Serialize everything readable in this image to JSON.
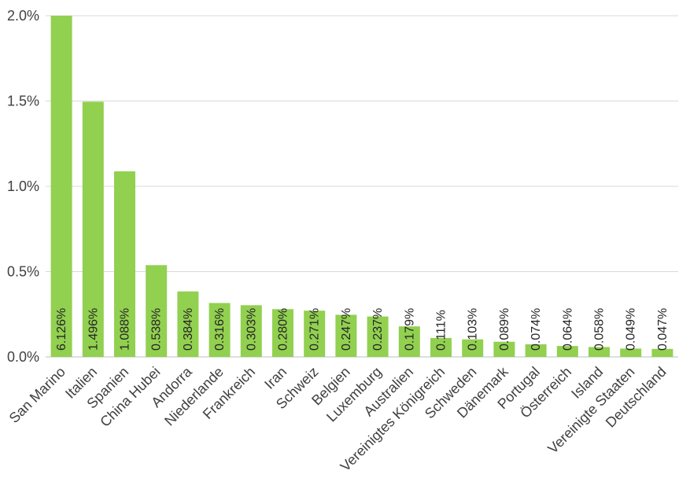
{
  "chart_data": {
    "type": "bar",
    "title": "",
    "xlabel": "",
    "ylabel": "",
    "categories": [
      "San Marino",
      "Italien",
      "Spanien",
      "China Hubei",
      "Andorra",
      "Niederlande",
      "Frankreich",
      "Iran",
      "Schweiz",
      "Belgien",
      "Luxemburg",
      "Australien",
      "Vereinigtes Königreich",
      "Schweden",
      "Dänemark",
      "Portugal",
      "Österreich",
      "Island",
      "Vereinigte Staaten",
      "Deutschland"
    ],
    "values": [
      6.126,
      1.496,
      1.088,
      0.538,
      0.384,
      0.316,
      0.303,
      0.28,
      0.271,
      0.247,
      0.237,
      0.179,
      0.111,
      0.103,
      0.089,
      0.074,
      0.064,
      0.058,
      0.049,
      0.047
    ],
    "data_labels": [
      "6.126%",
      "1.496%",
      "1.088%",
      "0.538%",
      "0.384%",
      "0.316%",
      "0.303%",
      "0.280%",
      "0.271%",
      "0.247%",
      "0.237%",
      "0.179%",
      "0.111%",
      "0.103%",
      "0.089%",
      "0.074%",
      "0.064%",
      "0.058%",
      "0.049%",
      "0.047%"
    ],
    "ylim": [
      0,
      2.0
    ],
    "y_ticks": [
      0,
      0.5,
      1.0,
      1.5,
      2.0
    ],
    "y_tick_labels": [
      "0.0%",
      "0.5%",
      "1.0%",
      "1.5%",
      "2.0%"
    ],
    "grid": true,
    "legend": "none",
    "bar_color": "#92d050",
    "grid_color": "#d9d9d9"
  }
}
